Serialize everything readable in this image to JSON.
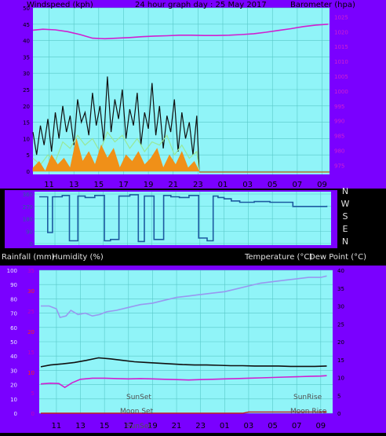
{
  "chart_data": [
    {
      "type": "line",
      "title": "24 hour graph day : 25 May 2017",
      "ylabel_left": "Windspeed (kph)",
      "ylabel_right": "Barometer (hpa)",
      "x_ticks": [
        "11",
        "13",
        "15",
        "17",
        "19",
        "21",
        "23",
        "01",
        "03",
        "05",
        "07",
        "09"
      ],
      "y_left_ticks": [
        0,
        5,
        10,
        15,
        20,
        25,
        30,
        35,
        40,
        45,
        50
      ],
      "ylim_left": [
        0,
        50
      ],
      "y_right_ticks": [
        975,
        980,
        985,
        990,
        995,
        1000,
        1005,
        1010,
        1015,
        1020,
        1025
      ],
      "ylim_right": [
        973,
        1028
      ],
      "series": [
        {
          "role": "barometer",
          "axis": "right",
          "color": "#d020d0",
          "x": [
            9.7,
            10.5,
            11.5,
            12.5,
            13.5,
            14.5,
            15.5,
            16.5,
            17.5,
            18.5,
            19.5,
            20.5,
            21.5,
            22.5,
            23.5,
            24.5,
            25.5,
            26.5,
            27.5,
            28.5,
            29.5,
            30.5,
            31.5,
            32.5,
            33.5
          ],
          "y": [
            1020.5,
            1020.8,
            1020.6,
            1020,
            1019,
            1017.8,
            1017.6,
            1017.8,
            1018,
            1018.3,
            1018.5,
            1018.6,
            1018.8,
            1018.8,
            1018.7,
            1018.7,
            1018.8,
            1019,
            1019.3,
            1019.8,
            1020.4,
            1021,
            1021.7,
            1022.2,
            1022.5
          ]
        },
        {
          "role": "wind-gust",
          "axis": "left",
          "color": "#101010",
          "x": [
            9.7,
            10,
            10.3,
            10.6,
            10.9,
            11.2,
            11.5,
            11.8,
            12.1,
            12.4,
            12.7,
            13,
            13.3,
            13.6,
            13.9,
            14.2,
            14.5,
            14.8,
            15.1,
            15.4,
            15.7,
            16,
            16.3,
            16.6,
            16.9,
            17.2,
            17.5,
            17.8,
            18.1,
            18.4,
            18.7,
            19,
            19.3,
            19.6,
            19.9,
            20.2,
            20.5,
            20.8,
            21.1,
            21.4,
            21.7,
            22,
            22.3,
            22.6,
            22.9,
            23.1
          ],
          "y": [
            12,
            5,
            14,
            8,
            16,
            6,
            18,
            10,
            20,
            12,
            17,
            8,
            22,
            15,
            18,
            11,
            24,
            14,
            20,
            9,
            29,
            12,
            22,
            16,
            25,
            10,
            19,
            14,
            24,
            8,
            18,
            13,
            27,
            11,
            20,
            7,
            17,
            12,
            22,
            6,
            18,
            10,
            15,
            5,
            17,
            0
          ]
        },
        {
          "role": "wind-average",
          "axis": "left",
          "color": "#98e898",
          "x": [
            9.7,
            10.3,
            10.9,
            11.5,
            12.1,
            12.7,
            13.3,
            13.9,
            14.5,
            15.1,
            15.7,
            16.3,
            16.9,
            17.5,
            18.1,
            18.7,
            19.3,
            19.9,
            20.5,
            21.1,
            21.7,
            22.3,
            22.9,
            23.1
          ],
          "y": [
            4,
            2,
            5,
            3,
            9,
            7,
            11,
            8,
            10,
            6,
            12,
            9,
            11,
            7,
            10,
            6,
            9,
            8,
            11,
            5,
            8,
            4,
            6,
            0
          ]
        },
        {
          "role": "wind-speed",
          "axis": "left",
          "color": "#f09018",
          "x": [
            9.7,
            10.2,
            10.7,
            11.2,
            11.7,
            12.2,
            12.7,
            13.2,
            13.7,
            14.2,
            14.7,
            15.2,
            15.7,
            16.2,
            16.7,
            17.2,
            17.7,
            18.2,
            18.7,
            19.2,
            19.7,
            20.2,
            20.7,
            21.2,
            21.7,
            22.2,
            22.7,
            23.1
          ],
          "y": [
            1,
            3,
            0,
            5,
            2,
            4,
            1,
            10,
            3,
            6,
            2,
            8,
            4,
            7,
            1,
            5,
            3,
            6,
            2,
            4,
            7,
            1,
            5,
            2,
            6,
            1,
            3,
            0
          ]
        }
      ]
    },
    {
      "type": "line",
      "right_labels": [
        "N",
        "W",
        "S",
        "E",
        "N"
      ],
      "y_left_ticks": [
        0,
        90,
        180,
        270,
        360
      ],
      "ylim": [
        0,
        360
      ],
      "series": [
        {
          "role": "wind-direction",
          "color": "#1c5aa0",
          "x": [
            9.7,
            10.4,
            10.8,
            11.6,
            12.2,
            12.9,
            13.5,
            14.3,
            15.1,
            15.6,
            16.3,
            17.2,
            17.9,
            18.4,
            19.2,
            20.0,
            20.6,
            21.3,
            22.1,
            22.9,
            23.6,
            24.1,
            24.5,
            25.0,
            25.6,
            26.3,
            27.5,
            28.8,
            29.6,
            30.7,
            32.0,
            33.5
          ],
          "y": [
            340,
            80,
            340,
            350,
            20,
            345,
            335,
            350,
            20,
            30,
            345,
            355,
            15,
            345,
            30,
            350,
            340,
            335,
            350,
            40,
            20,
            345,
            335,
            325,
            310,
            300,
            305,
            300,
            300,
            270,
            270,
            275
          ]
        }
      ]
    },
    {
      "type": "line",
      "ylabel_left_1": "Rainfall (mm)",
      "ylabel_left_2": "Humidity (%)",
      "ylabel_right": "Temperature (°C)",
      "ylabel_right_2": "Dew Point (°C)",
      "x_ticks": [
        "11",
        "13",
        "15",
        "17",
        "19",
        "21",
        "23",
        "01",
        "03",
        "05",
        "07",
        "09"
      ],
      "humidity_ticks": [
        0,
        10,
        20,
        30,
        40,
        50,
        60,
        70,
        80,
        90,
        100
      ],
      "ylim_humidity": [
        0,
        100
      ],
      "rain_ticks": [
        "0",
        "5",
        "10",
        "15",
        "20",
        "25",
        "30",
        "35"
      ],
      "rain_labels_shown": [
        "10",
        "20",
        "30"
      ],
      "temp_ticks": [
        0,
        5,
        10,
        15,
        20,
        25,
        30,
        35,
        40
      ],
      "ylim_temperature": [
        0,
        40
      ],
      "annotations": [
        "SunSet",
        "SunRise",
        "Moon Set",
        "Moon Rise",
        "SunSet"
      ],
      "series": [
        {
          "role": "humidity",
          "axis": "humidity",
          "color": "#9898f0",
          "x": [
            9.7,
            10.4,
            11.0,
            11.3,
            11.8,
            12.2,
            12.8,
            13.4,
            14.0,
            14.6,
            15.2,
            16.0,
            17.0,
            18.0,
            19.0,
            20.0,
            21.0,
            22.0,
            23.0,
            24.0,
            25.0,
            26.0,
            27.0,
            28.0,
            29.0,
            30.0,
            31.0,
            32.0,
            33.0,
            33.5
          ],
          "y": [
            75,
            75,
            73,
            67,
            68,
            72,
            69,
            70,
            68,
            69,
            71,
            72,
            74,
            76,
            77,
            79,
            81,
            82,
            83,
            84,
            85,
            87,
            89,
            91,
            92,
            93,
            94,
            95,
            95,
            96
          ]
        },
        {
          "role": "temperature",
          "axis": "temperature",
          "color": "#101010",
          "x": [
            9.7,
            10.5,
            11.5,
            12.5,
            13.5,
            14.5,
            15.5,
            16.5,
            17.5,
            18.5,
            19.5,
            20.5,
            21.5,
            22.5,
            23.5,
            24.5,
            25.5,
            26.5,
            27.5,
            28.5,
            29.5,
            30.5,
            31.5,
            32.5,
            33.5
          ],
          "y": [
            13,
            13.5,
            13.8,
            14.2,
            14.8,
            15.5,
            15.2,
            14.8,
            14.4,
            14.2,
            14,
            13.8,
            13.6,
            13.5,
            13.5,
            13.4,
            13.3,
            13.3,
            13.2,
            13.2,
            13.2,
            13.1,
            13.1,
            13.1,
            13.2
          ]
        },
        {
          "role": "dew-point",
          "axis": "temperature",
          "color": "#d020d0",
          "x": [
            9.7,
            10.5,
            11.2,
            11.7,
            12.3,
            13.0,
            14.0,
            15.0,
            16.0,
            17.0,
            18.0,
            19.0,
            20.0,
            21.0,
            22.0,
            23.0,
            24.0,
            25.0,
            26.0,
            27.0,
            28.0,
            29.0,
            30.0,
            31.0,
            32.0,
            33.0,
            33.5
          ],
          "y": [
            8.2,
            8.4,
            8.3,
            7.2,
            8.5,
            9.5,
            9.8,
            9.8,
            9.7,
            9.6,
            9.7,
            9.6,
            9.5,
            9.4,
            9.3,
            9.4,
            9.5,
            9.6,
            9.7,
            9.8,
            9.9,
            10,
            10.1,
            10.2,
            10.3,
            10.4,
            10.5
          ]
        },
        {
          "role": "rainfall",
          "axis": "rain",
          "color": "#c02020",
          "x": [
            9.7,
            26.5,
            27.0,
            33.5
          ],
          "y": [
            0,
            0,
            0.3,
            0.3
          ]
        }
      ]
    }
  ]
}
